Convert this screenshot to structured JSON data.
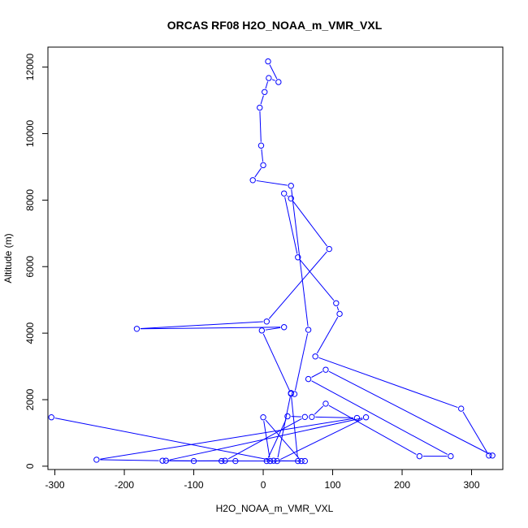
{
  "chart_data": {
    "type": "line",
    "title": "ORCAS RF08 H2O_NOAA_m_VMR_VXL",
    "xlabel": "H2O_NOAA_m_VMR_VXL",
    "ylabel": "Altitude (m)",
    "xlim": [
      -310,
      345
    ],
    "ylim": [
      -100,
      12600
    ],
    "xticks": [
      -300,
      -200,
      -100,
      0,
      100,
      200,
      300
    ],
    "yticks": [
      0,
      2000,
      4000,
      6000,
      8000,
      10000,
      12000
    ],
    "xtick_labels": [
      "-300",
      "-200",
      "-100",
      "0",
      "100",
      "200",
      "300"
    ],
    "ytick_labels": [
      "0",
      "2000",
      "4000",
      "6000",
      "8000",
      "10000",
      "12000"
    ],
    "grid": false,
    "series": [
      {
        "color": "#0000ff",
        "marker": "open-circle",
        "x": [
          -305,
          15,
          60,
          55,
          0,
          10,
          -40,
          -60,
          50,
          40,
          20,
          148,
          -140,
          -100,
          -55,
          60,
          35,
          5,
          -145,
          -240,
          135,
          70,
          90,
          225,
          270,
          65,
          90,
          330,
          325,
          285,
          75,
          110,
          105,
          50,
          30,
          40,
          95,
          5,
          -182,
          30,
          -2,
          40,
          45,
          65,
          40,
          -15,
          0,
          -3,
          -5,
          2,
          8,
          22,
          7
        ],
        "y": [
          1470,
          165,
          155,
          155,
          1470,
          155,
          155,
          155,
          155,
          2200,
          155,
          1470,
          165,
          155,
          165,
          1480,
          1500,
          155,
          165,
          195,
          1450,
          1480,
          1880,
          300,
          300,
          2620,
          2900,
          320,
          320,
          1730,
          3300,
          4580,
          4900,
          6280,
          8200,
          8050,
          6530,
          4350,
          4130,
          4180,
          4080,
          2180,
          2170,
          4100,
          8430,
          8600,
          9050,
          9640,
          10780,
          11250,
          11670,
          11550,
          12170
        ]
      }
    ]
  }
}
